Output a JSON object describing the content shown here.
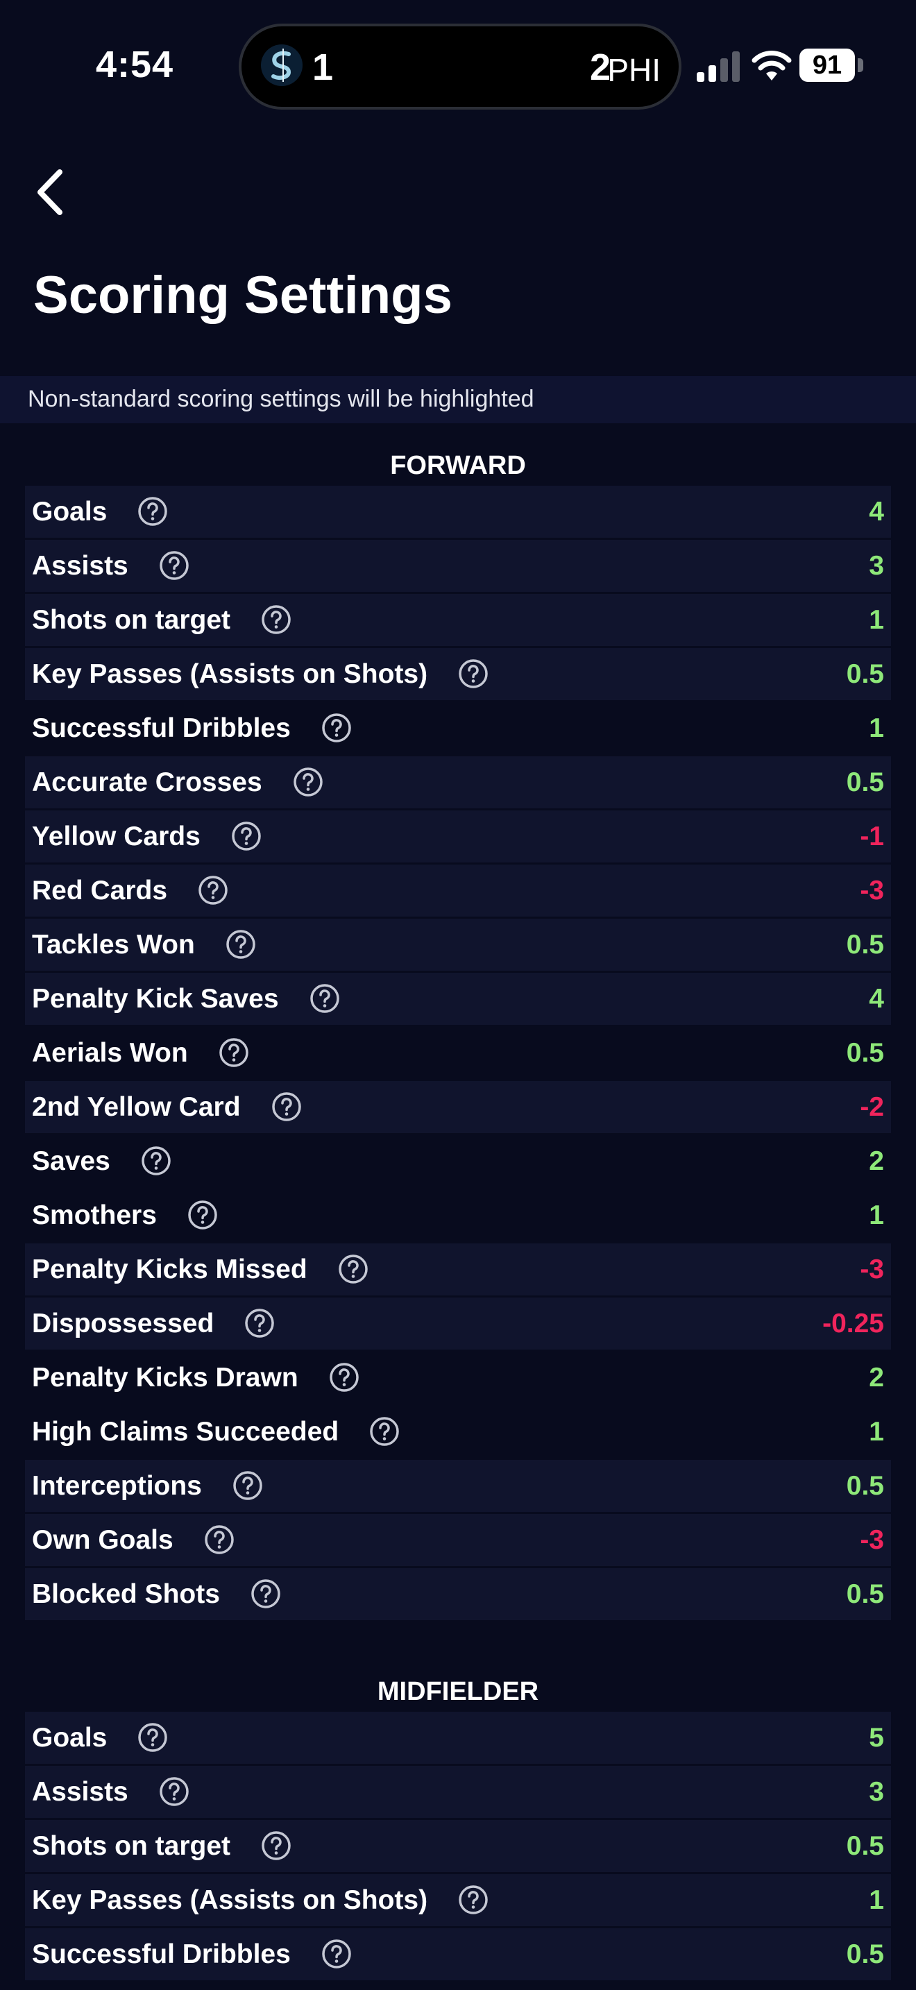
{
  "status_bar": {
    "time": "4:54",
    "live_activity": {
      "home_score": "1",
      "away_score": "2",
      "away_team": "PHI"
    },
    "battery": "91"
  },
  "header": {
    "title": "Scoring Settings"
  },
  "notice": "Non-standard scoring settings will be highlighted",
  "colors": {
    "background": "#080b1e",
    "row_background": "#10142d",
    "positive": "#8ee879",
    "negative": "#f0245c"
  },
  "sections": [
    {
      "title": "FORWARD",
      "rows": [
        {
          "label": "Goals",
          "value": "4"
        },
        {
          "label": "Assists",
          "value": "3"
        },
        {
          "label": "Shots on target",
          "value": "1"
        },
        {
          "label": "Key Passes (Assists on Shots)",
          "value": "0.5"
        },
        {
          "label": "Successful Dribbles",
          "value": "1"
        },
        {
          "label": "Accurate Crosses",
          "value": "0.5"
        },
        {
          "label": "Yellow Cards",
          "value": "-1"
        },
        {
          "label": "Red Cards",
          "value": "-3"
        },
        {
          "label": "Tackles Won",
          "value": "0.5"
        },
        {
          "label": "Penalty Kick Saves",
          "value": "4"
        },
        {
          "label": "Aerials Won",
          "value": "0.5"
        },
        {
          "label": "2nd Yellow Card",
          "value": "-2"
        },
        {
          "label": "Saves",
          "value": "2"
        },
        {
          "label": "Smothers",
          "value": "1"
        },
        {
          "label": "Penalty Kicks Missed",
          "value": "-3"
        },
        {
          "label": "Dispossessed",
          "value": "-0.25"
        },
        {
          "label": "Penalty Kicks Drawn",
          "value": "2"
        },
        {
          "label": "High Claims Succeeded",
          "value": "1"
        },
        {
          "label": "Interceptions",
          "value": "0.5"
        },
        {
          "label": "Own Goals",
          "value": "-3"
        },
        {
          "label": "Blocked Shots",
          "value": "0.5"
        }
      ]
    },
    {
      "title": "MIDFIELDER",
      "rows": [
        {
          "label": "Goals",
          "value": "5"
        },
        {
          "label": "Assists",
          "value": "3"
        },
        {
          "label": "Shots on target",
          "value": "0.5"
        },
        {
          "label": "Key Passes (Assists on Shots)",
          "value": "1"
        },
        {
          "label": "Successful Dribbles",
          "value": "0.5"
        }
      ]
    }
  ]
}
